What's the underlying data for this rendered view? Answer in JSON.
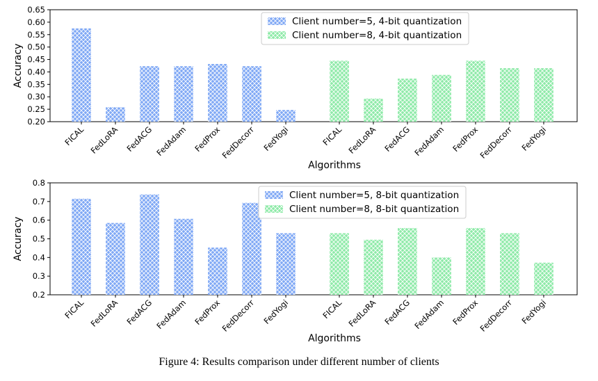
{
  "caption": "Figure 4: Results comparison under different number of clients",
  "colors": {
    "series1": "#7fa8f5",
    "series2": "#8eeaa8",
    "hatch": "#ffffff"
  },
  "chart_data": [
    {
      "type": "bar",
      "xlabel": "Algorithms",
      "ylabel": "Accuracy",
      "ylim": [
        0.2,
        0.65
      ],
      "yticks": [
        "0.20",
        "0.25",
        "0.30",
        "0.35",
        "0.40",
        "0.45",
        "0.50",
        "0.55",
        "0.60",
        "0.65"
      ],
      "legend_position": "top-center",
      "categories": [
        "FICAL",
        "FedLoRA",
        "FedACG",
        "FedAdam",
        "FedProx",
        "FedDecorr",
        "FedYogi"
      ],
      "series": [
        {
          "name": "Client number=5, 4-bit quantization",
          "values": [
            0.575,
            0.258,
            0.423,
            0.423,
            0.432,
            0.423,
            0.247
          ]
        },
        {
          "name": "Client number=8, 4-bit quantization",
          "values": [
            0.445,
            0.293,
            0.373,
            0.388,
            0.445,
            0.415,
            0.415
          ]
        }
      ]
    },
    {
      "type": "bar",
      "xlabel": "Algorithms",
      "ylabel": "Accuracy",
      "ylim": [
        0.2,
        0.8
      ],
      "yticks": [
        "0.2",
        "0.3",
        "0.4",
        "0.5",
        "0.6",
        "0.7",
        "0.8"
      ],
      "legend_position": "top-center",
      "categories": [
        "FICAL",
        "FedLoRA",
        "FedACG",
        "FedAdam",
        "FedProx",
        "FedDecorr",
        "FedYogi"
      ],
      "series": [
        {
          "name": "Client number=5, 8-bit quantization",
          "values": [
            0.715,
            0.585,
            0.738,
            0.607,
            0.453,
            0.693,
            0.53
          ]
        },
        {
          "name": "Client number=8, 8-bit quantization",
          "values": [
            0.53,
            0.495,
            0.558,
            0.4,
            0.558,
            0.53,
            0.372
          ]
        }
      ]
    }
  ]
}
